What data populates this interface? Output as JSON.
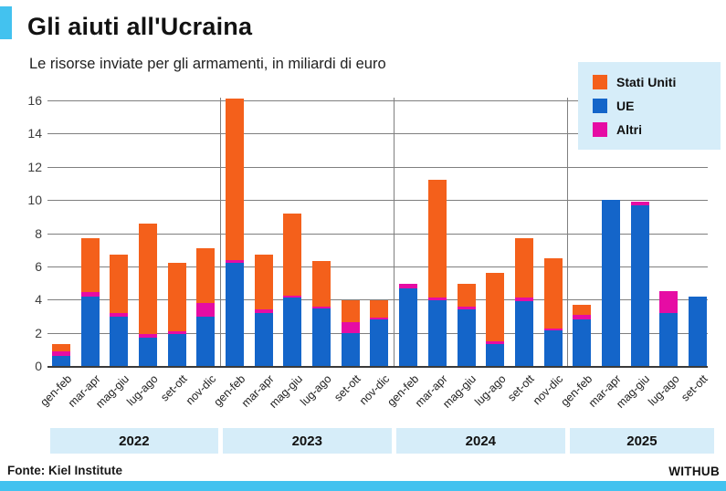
{
  "header": {
    "title": "Gli aiuti all'Ucraina",
    "subtitle": "Le risorse inviate per gli armamenti, in miliardi di euro"
  },
  "legend": {
    "items": [
      {
        "label": "Stati Uniti",
        "color": "#F4601B"
      },
      {
        "label": "UE",
        "color": "#1465C9"
      },
      {
        "label": "Altri",
        "color": "#E60CA4"
      }
    ]
  },
  "chart_data": {
    "type": "bar",
    "stacked": true,
    "title": "Gli aiuti all'Ucraina",
    "subtitle": "Le risorse inviate per gli armamenti, in miliardi di euro",
    "ylabel": "miliardi di euro",
    "xlabel": "",
    "ylim": [
      0,
      16
    ],
    "yticks": [
      0,
      2,
      4,
      6,
      8,
      10,
      12,
      14,
      16
    ],
    "grid": true,
    "legend_position": "top-right",
    "categories": [
      "gen-feb",
      "mar-apr",
      "mag-giu",
      "lug-ago",
      "set-ott",
      "nov-dic",
      "gen-feb",
      "mar-apr",
      "mag-giu",
      "lug-ago",
      "set-ott",
      "nov-dic",
      "gen-feb",
      "mar-apr",
      "mag-giu",
      "lug-ago",
      "set-ott",
      "nov-dic",
      "gen-feb",
      "mar-apr",
      "mag-giu",
      "lug-ago",
      "set-ott"
    ],
    "year_groups": [
      {
        "label": "2022",
        "bars": 6
      },
      {
        "label": "2023",
        "bars": 6
      },
      {
        "label": "2024",
        "bars": 6
      },
      {
        "label": "2025",
        "bars": 5
      }
    ],
    "series": [
      {
        "name": "UE",
        "color": "#1465C9",
        "values": [
          0.6,
          4.2,
          2.95,
          1.7,
          1.9,
          2.95,
          6.2,
          3.2,
          4.1,
          3.45,
          2.0,
          2.8,
          4.7,
          3.95,
          3.4,
          1.3,
          3.9,
          2.15,
          2.8,
          10.0,
          9.7,
          3.2,
          4.2
        ]
      },
      {
        "name": "Altri",
        "color": "#E60CA4",
        "values": [
          0.3,
          0.25,
          0.25,
          0.2,
          0.2,
          0.85,
          0.2,
          0.2,
          0.15,
          0.15,
          0.65,
          0.1,
          0.25,
          0.15,
          0.2,
          0.2,
          0.25,
          0.1,
          0.3,
          0,
          0.2,
          1.3,
          0
        ]
      },
      {
        "name": "Stati Uniti",
        "color": "#F4601B",
        "values": [
          0.4,
          3.25,
          3.5,
          6.7,
          4.1,
          3.3,
          9.7,
          3.3,
          4.95,
          2.7,
          1.3,
          1.05,
          0,
          7.1,
          1.35,
          4.1,
          3.55,
          4.25,
          0.6,
          0,
          0,
          0,
          0
        ]
      }
    ]
  },
  "footer": {
    "source": "Fonte: Kiel Institute",
    "brand": "WITHUB"
  },
  "colors": {
    "accent": "#43C2EF",
    "panel": "#D6EDF9",
    "grid": "#7F7F7F",
    "axis": "#3A3A3A"
  }
}
